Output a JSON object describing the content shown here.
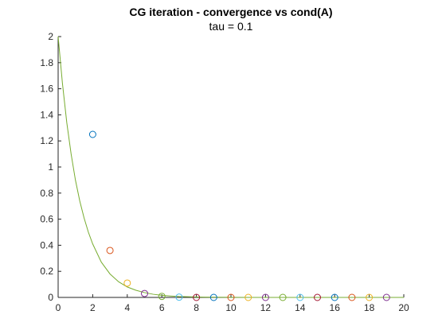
{
  "chart_data": {
    "type": "scatter",
    "title": "CG iteration - convergence vs cond(A)",
    "subtitle": "tau = 0.1",
    "xlabel": "",
    "ylabel": "",
    "xlim": [
      0,
      20
    ],
    "ylim": [
      0,
      2
    ],
    "x_ticks": [
      0,
      2,
      4,
      6,
      8,
      10,
      12,
      14,
      16,
      18,
      20
    ],
    "y_ticks": [
      0,
      0.2,
      0.4,
      0.6,
      0.8,
      1,
      1.2,
      1.4,
      1.6,
      1.8,
      2
    ],
    "y_tick_labels": [
      "0",
      "0.2",
      "0.4",
      "0.6",
      "0.8",
      "1",
      "1.2",
      "1.4",
      "1.6",
      "1.8",
      "2"
    ],
    "grid": false,
    "legend": "none",
    "marker": "open-circle",
    "points": [
      {
        "x": 2,
        "y": 1.25,
        "color": "#0072BD"
      },
      {
        "x": 3,
        "y": 0.36,
        "color": "#D95319"
      },
      {
        "x": 4,
        "y": 0.11,
        "color": "#EDB120"
      },
      {
        "x": 5,
        "y": 0.03,
        "color": "#7E2F8E"
      },
      {
        "x": 6,
        "y": 0.008,
        "color": "#77AC30"
      },
      {
        "x": 7,
        "y": 0.002,
        "color": "#4DBEEE"
      },
      {
        "x": 8,
        "y": 0.0,
        "color": "#A2142F"
      },
      {
        "x": 9,
        "y": 0.0,
        "color": "#0072BD"
      },
      {
        "x": 10,
        "y": 0.0,
        "color": "#D95319"
      },
      {
        "x": 11,
        "y": 0.0,
        "color": "#EDB120"
      },
      {
        "x": 12,
        "y": 0.0,
        "color": "#7E2F8E"
      },
      {
        "x": 13,
        "y": 0.0,
        "color": "#77AC30"
      },
      {
        "x": 14,
        "y": 0.0,
        "color": "#4DBEEE"
      },
      {
        "x": 15,
        "y": 0.0,
        "color": "#A2142F"
      },
      {
        "x": 16,
        "y": 0.0,
        "color": "#0072BD"
      },
      {
        "x": 17,
        "y": 0.0,
        "color": "#D95319"
      },
      {
        "x": 18,
        "y": 0.0,
        "color": "#EDB120"
      },
      {
        "x": 19,
        "y": 0.0,
        "color": "#7E2F8E"
      }
    ],
    "curve": {
      "type": "line",
      "color": "#77AC30",
      "x": [
        0,
        0.25,
        0.5,
        0.75,
        1,
        1.25,
        1.5,
        1.75,
        2,
        2.5,
        3,
        3.5,
        4,
        4.5,
        5,
        5.5,
        6,
        6.5,
        7,
        7.5,
        8,
        9,
        10,
        11,
        12,
        13,
        14,
        15,
        16,
        17,
        18,
        19,
        20
      ],
      "y": [
        2,
        1.64,
        1.34,
        1.1,
        0.9,
        0.74,
        0.61,
        0.5,
        0.41,
        0.27,
        0.18,
        0.12,
        0.08,
        0.055,
        0.037,
        0.024,
        0.016,
        0.011,
        0.007,
        0.005,
        0.003,
        0.0015,
        0.0007,
        0.0003,
        0.0001,
        0,
        0,
        0,
        0,
        0,
        0,
        0,
        0
      ]
    }
  }
}
